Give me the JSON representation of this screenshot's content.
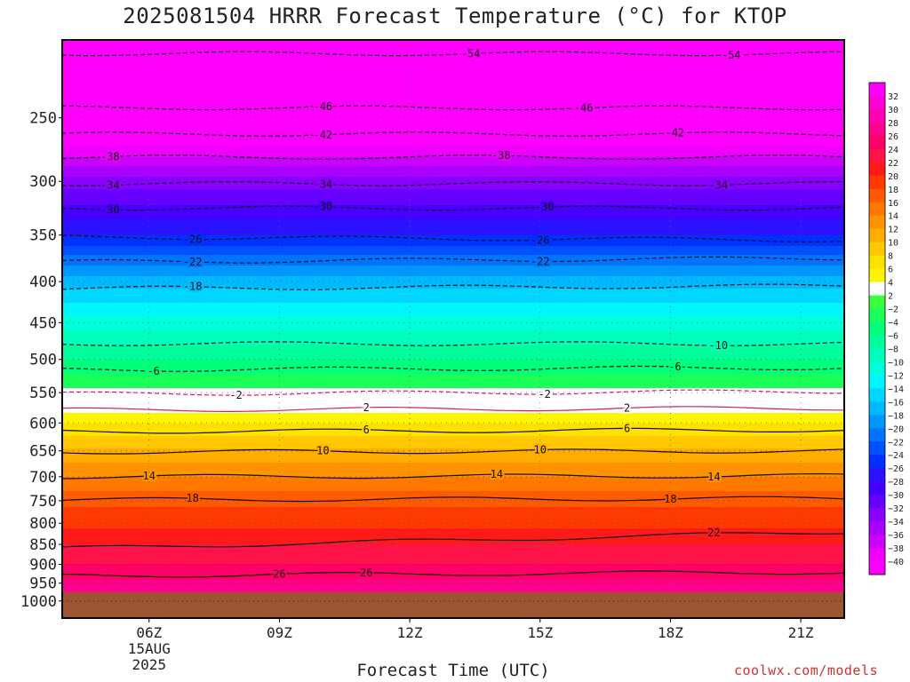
{
  "title": "2025081504 HRRR Forecast Temperature (°C) for KTOP",
  "xlabel": "Forecast Time (UTC)",
  "credit": "coolwx.com/models",
  "colors": {
    "ground": "#9c5530",
    "zero_band": "#ffffff",
    "negative_contour": "#111111",
    "positive_contour": "#111111",
    "freezing_contour": "#d01e6e"
  },
  "chart_data": {
    "type": "heatmap",
    "title": "2025081504 HRRR Forecast Temperature (°C) for KTOP",
    "xlabel": "Forecast Time (UTC)",
    "ylabel": "",
    "x_hours": [
      4,
      6,
      9,
      12,
      15,
      18,
      21,
      22
    ],
    "x_range": [
      4,
      22
    ],
    "x_ticks": [
      {
        "hour": 6,
        "label": "06Z",
        "sub": [
          "15AUG",
          "2025"
        ]
      },
      {
        "hour": 9,
        "label": "09Z",
        "sub": []
      },
      {
        "hour": 12,
        "label": "12Z",
        "sub": []
      },
      {
        "hour": 15,
        "label": "15Z",
        "sub": []
      },
      {
        "hour": 18,
        "label": "18Z",
        "sub": []
      },
      {
        "hour": 21,
        "label": "21Z",
        "sub": []
      }
    ],
    "y_axis": "pressure (hPa), log scale, decreasing upward",
    "y_range": [
      1000,
      200
    ],
    "y_ticks": [
      250,
      300,
      350,
      400,
      450,
      500,
      550,
      600,
      650,
      700,
      750,
      800,
      850,
      900,
      950,
      1000
    ],
    "surface_pressure_hpa": 975,
    "grid": true,
    "colorbar": {
      "placement": "right",
      "labels": [
        32,
        30,
        28,
        26,
        24,
        22,
        20,
        18,
        16,
        14,
        12,
        10,
        8,
        6,
        4,
        2,
        -2,
        -4,
        -6,
        -8,
        -10,
        -12,
        -14,
        -16,
        -18,
        -20,
        -22,
        -24,
        -26,
        -28,
        -30,
        -32,
        -34,
        -36,
        -38,
        -40
      ],
      "colors": [
        "#ff00ff",
        "#ff00d9",
        "#ff00b4",
        "#ff0090",
        "#ff0066",
        "#ff1447",
        "#ff1a1a",
        "#ff3a00",
        "#ff5a00",
        "#ff7800",
        "#ff9400",
        "#ffae00",
        "#ffc800",
        "#ffe100",
        "#fff500",
        "#ffffff",
        "#3cff3c",
        "#1aff5a",
        "#00ff7a",
        "#00ff9c",
        "#00ffbc",
        "#00ffdc",
        "#00f5ff",
        "#00d7ff",
        "#00b9ff",
        "#0096ff",
        "#0073ff",
        "#0050ff",
        "#0030ff",
        "#2a12ff",
        "#4500ff",
        "#6600ff",
        "#8800ff",
        "#aa00ff",
        "#cc00ff",
        "#ee00ff",
        "#ff00ff"
      ]
    },
    "temperature_profile": [
      {
        "p": 975,
        "t": 28
      },
      {
        "p": 950,
        "t": 26.5
      },
      {
        "p": 900,
        "t": 24
      },
      {
        "p": 850,
        "t": 22
      },
      {
        "p": 800,
        "t": 19.5
      },
      {
        "p": 750,
        "t": 17.5
      },
      {
        "p": 700,
        "t": 14
      },
      {
        "p": 650,
        "t": 10.5
      },
      {
        "p": 600,
        "t": 6
      },
      {
        "p": 575,
        "t": 3
      },
      {
        "p": 560,
        "t": 1
      },
      {
        "p": 550,
        "t": -1.5
      },
      {
        "p": 500,
        "t": -6
      },
      {
        "p": 450,
        "t": -11
      },
      {
        "p": 400,
        "t": -17
      },
      {
        "p": 350,
        "t": -26
      },
      {
        "p": 300,
        "t": -33
      },
      {
        "p": 280,
        "t": -38
      },
      {
        "p": 250,
        "t": -45
      },
      {
        "p": 225,
        "t": -50
      },
      {
        "p": 200,
        "t": -56
      }
    ],
    "contours": [
      {
        "value": 54,
        "label": "-54",
        "style": "dashed",
        "levels": [
          {
            "hour": 4,
            "p": 208
          },
          {
            "hour": 22,
            "p": 208
          }
        ],
        "labels_at_hours": [
          13.4,
          19.4
        ]
      },
      {
        "value": 46,
        "label": "-46",
        "style": "dashed",
        "levels": [
          {
            "hour": 4,
            "p": 243
          },
          {
            "hour": 22,
            "p": 243
          }
        ],
        "labels_at_hours": [
          10.0,
          16.0
        ]
      },
      {
        "value": 42,
        "label": "-42",
        "style": "dashed",
        "levels": [
          {
            "hour": 4,
            "p": 262
          },
          {
            "hour": 22,
            "p": 262
          }
        ],
        "labels_at_hours": [
          10.0,
          18.1
        ]
      },
      {
        "value": 38,
        "label": "-38",
        "style": "dashed",
        "levels": [
          {
            "hour": 4,
            "p": 280
          },
          {
            "hour": 22,
            "p": 280
          }
        ],
        "labels_at_hours": [
          5.1,
          14.1
        ]
      },
      {
        "value": 34,
        "label": "-34",
        "style": "dashed",
        "levels": [
          {
            "hour": 4,
            "p": 302
          },
          {
            "hour": 22,
            "p": 302
          }
        ],
        "labels_at_hours": [
          5.1,
          10.0,
          19.1
        ]
      },
      {
        "value": 30,
        "label": "-30",
        "style": "dashed",
        "levels": [
          {
            "hour": 4,
            "p": 324
          },
          {
            "hour": 22,
            "p": 324
          }
        ],
        "labels_at_hours": [
          5.1,
          10.0,
          15.1
        ]
      },
      {
        "value": 26,
        "label": "-26",
        "style": "dashed",
        "levels": [
          {
            "hour": 4,
            "p": 352
          },
          {
            "hour": 22,
            "p": 355
          }
        ],
        "labels_at_hours": [
          7.0,
          15.0
        ]
      },
      {
        "value": 22,
        "label": "-22",
        "style": "dashed",
        "levels": [
          {
            "hour": 4,
            "p": 378
          },
          {
            "hour": 22,
            "p": 374
          }
        ],
        "labels_at_hours": [
          7.0,
          15.0
        ]
      },
      {
        "value": 18,
        "label": "-18",
        "style": "dashed",
        "levels": [
          {
            "hour": 4,
            "p": 408
          },
          {
            "hour": 22,
            "p": 405
          }
        ],
        "labels_at_hours": [
          7.0
        ]
      },
      {
        "value": 10,
        "label": "-10",
        "style": "dashed",
        "levels": [
          {
            "hour": 4,
            "p": 478
          },
          {
            "hour": 22,
            "p": 478
          }
        ],
        "labels_at_hours": [
          19.1
        ]
      },
      {
        "value": 6,
        "label": "-6",
        "style": "dashed",
        "levels": [
          {
            "hour": 4,
            "p": 515
          },
          {
            "hour": 22,
            "p": 512
          }
        ],
        "labels_at_hours": [
          6.1,
          18.1
        ]
      },
      {
        "value": 2,
        "label": "-2",
        "style": "dashed",
        "levels": [
          {
            "hour": 4,
            "p": 552
          },
          {
            "hour": 22,
            "p": 548
          }
        ],
        "labels_at_hours": [
          8.0,
          15.1
        ]
      },
      {
        "value": 2.5,
        "label": "2",
        "style": "solid",
        "levels": [
          {
            "hour": 4,
            "p": 578
          },
          {
            "hour": 22,
            "p": 575
          }
        ],
        "labels_at_hours": [
          11.0,
          17.0
        ]
      },
      {
        "value": 6.5,
        "label": "6",
        "style": "solid",
        "levels": [
          {
            "hour": 4,
            "p": 615
          },
          {
            "hour": 22,
            "p": 612
          }
        ],
        "labels_at_hours": [
          11.0,
          17.0
        ]
      },
      {
        "value": 10.5,
        "label": "10",
        "style": "solid",
        "levels": [
          {
            "hour": 4,
            "p": 652
          },
          {
            "hour": 22,
            "p": 650
          }
        ],
        "labels_at_hours": [
          10.0,
          15.0
        ]
      },
      {
        "value": 14.5,
        "label": "14",
        "style": "solid",
        "levels": [
          {
            "hour": 4,
            "p": 700
          },
          {
            "hour": 22,
            "p": 698
          }
        ],
        "labels_at_hours": [
          6.0,
          14.0,
          19.0
        ]
      },
      {
        "value": 18.5,
        "label": "18",
        "style": "solid",
        "levels": [
          {
            "hour": 4,
            "p": 748
          },
          {
            "hour": 22,
            "p": 745
          }
        ],
        "labels_at_hours": [
          7.0,
          18.0
        ]
      },
      {
        "value": 22.5,
        "label": "22",
        "style": "solid",
        "levels": [
          {
            "hour": 4,
            "p": 860
          },
          {
            "hour": 22,
            "p": 820
          }
        ],
        "labels_at_hours": [
          19.0
        ]
      },
      {
        "value": 26.5,
        "label": "26",
        "style": "solid",
        "levels": [
          {
            "hour": 4,
            "p": 930
          },
          {
            "hour": 22,
            "p": 920
          }
        ],
        "labels_at_hours": [
          9.0,
          11.0
        ]
      }
    ]
  }
}
